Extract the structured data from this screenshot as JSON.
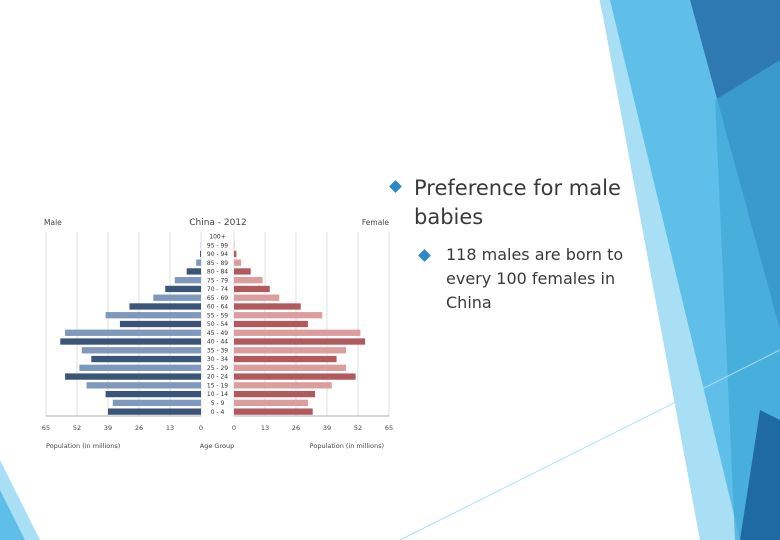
{
  "slide": {
    "bullet1": "Preference for male babies",
    "bullet2": "118 males are born to every 100 females in China",
    "accent_colors": [
      "#2f79b3",
      "#5fbfe8",
      "#a8dff5",
      "#3fa8d8",
      "#1f6aa3"
    ]
  },
  "chart_data": {
    "type": "bar",
    "orientation": "horizontal-population-pyramid",
    "title": "China - 2012",
    "left_label": "Male",
    "right_label": "Female",
    "xlabel_left": "Population (in millions)",
    "xlabel_center": "Age Group",
    "xlabel_right": "Population (in millions)",
    "x_ticks_left": [
      "65",
      "52",
      "39",
      "26",
      "13",
      "0"
    ],
    "x_ticks_right": [
      "0",
      "13",
      "26",
      "39",
      "52",
      "65"
    ],
    "xlim": [
      0,
      65
    ],
    "categories": [
      "100+",
      "95 - 99",
      "90 - 94",
      "85 - 89",
      "80 - 84",
      "75 - 79",
      "70 - 74",
      "65 - 69",
      "60 - 64",
      "55 - 59",
      "50 - 54",
      "45 - 49",
      "40 - 44",
      "35 - 39",
      "30 - 34",
      "25 - 29",
      "20 - 24",
      "15 - 19",
      "10 - 14",
      "5 - 9",
      "0 - 4"
    ],
    "series": [
      {
        "name": "Male",
        "color_dark": "#3a5578",
        "color_light": "#7f98bd",
        "values": [
          0,
          0.1,
          0.4,
          2,
          6,
          11,
          15,
          20,
          30,
          40,
          34,
          57,
          59,
          50,
          46,
          51,
          57,
          48,
          40,
          37,
          39
        ]
      },
      {
        "name": "Female",
        "color_dark": "#b05a5e",
        "color_light": "#dc9d9d",
        "values": [
          0,
          0.2,
          1,
          3,
          7,
          12,
          15,
          19,
          28,
          37,
          31,
          53,
          55,
          47,
          43,
          47,
          51,
          41,
          34,
          31,
          33
        ]
      }
    ],
    "grid": true
  }
}
